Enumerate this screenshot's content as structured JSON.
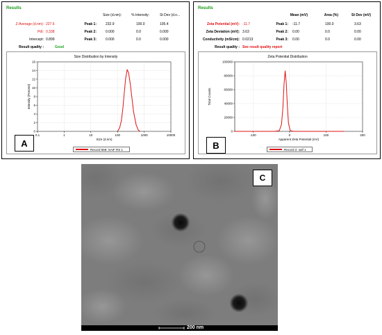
{
  "panel_a": {
    "results_title": "Results",
    "col_headers": [
      "Size (d.nm):",
      "% Intensity:",
      "St Dev (d.n..."
    ],
    "rows": [
      {
        "label": "Z-Average (d.nm):",
        "value": "227.6",
        "peak": "Peak 1:",
        "size": "232.9",
        "intensity": "100.0",
        "stdev": "105.4"
      },
      {
        "label": "PdI:",
        "value": "0.338",
        "peak": "Peak 2:",
        "size": "0.000",
        "intensity": "0.0",
        "stdev": "0.000"
      },
      {
        "label": "Intercept:",
        "value": "0.899",
        "peak": "Peak 3:",
        "size": "0.000",
        "intensity": "0.0",
        "stdev": "0.000"
      }
    ],
    "quality_label": "Result quality :",
    "quality_value": "Good",
    "letter": "A"
  },
  "panel_b": {
    "results_title": "Results",
    "col_headers": [
      "Mean (mV)",
      "Area (%)",
      "St Dev (mV)"
    ],
    "rows": [
      {
        "label": "Zeta Potential (mV):",
        "value": "-11.7",
        "peak": "Peak 1:",
        "mean": "-11.7",
        "area": "100.0",
        "stdev": "3.63"
      },
      {
        "label": "Zeta Deviation (mV):",
        "value": "3.63",
        "peak": "Peak 2:",
        "mean": "0.00",
        "area": "0.0",
        "stdev": "0.00"
      },
      {
        "label": "Conductivity (mS/cm):",
        "value": "0.0213",
        "peak": "Peak 3:",
        "mean": "0.00",
        "area": "0.0",
        "stdev": "0.00"
      }
    ],
    "quality_label": "Result quality :",
    "quality_value": "See result quality report",
    "letter": "B"
  },
  "panel_c": {
    "letter": "C",
    "scale_label": "200 nm"
  },
  "chart_data": [
    {
      "type": "line",
      "title": "Size Distribution by Intensity",
      "xlabel": "Size (d.nm)",
      "ylabel": "Intensity (Percent)",
      "x_scale": "log",
      "xlim": [
        0.1,
        10000
      ],
      "x_ticks": [
        "0.1",
        "1",
        "10",
        "100",
        "1000",
        "10000"
      ],
      "ylim": [
        0,
        16
      ],
      "y_ticks": [
        "0",
        "2",
        "4",
        "6",
        "8",
        "10",
        "12",
        "14",
        "16"
      ],
      "grid": true,
      "legend": "bottom",
      "series": [
        {
          "name": "Record 659: SAIF RS 1",
          "color": "#e01010",
          "x": [
            100,
            120,
            140,
            160,
            180,
            200,
            230,
            260,
            300,
            350,
            400,
            500,
            600,
            700
          ],
          "y": [
            0,
            0.8,
            2.5,
            5.5,
            9,
            12,
            14.2,
            13.5,
            11,
            7.5,
            4.5,
            1.5,
            0.3,
            0
          ]
        }
      ]
    },
    {
      "type": "line",
      "title": "Zeta Potential Distribution",
      "xlabel": "Apparent Zeta Potential (mV)",
      "ylabel": "Total Counts",
      "xlim": [
        -150,
        200
      ],
      "x_ticks": [
        "-100",
        "0",
        "100",
        "200"
      ],
      "ylim": [
        0,
        100000
      ],
      "y_ticks": [
        "0",
        "20000",
        "40000",
        "60000",
        "80000",
        "100000"
      ],
      "grid": true,
      "legend": "bottom",
      "series": [
        {
          "name": "Record 2: saif 1",
          "color": "#e01010",
          "x": [
            -150,
            -40,
            -28,
            -22,
            -18,
            -15,
            -12,
            -9,
            -6,
            -3,
            2,
            10,
            150
          ],
          "y": [
            0,
            0,
            1000,
            10000,
            35000,
            68000,
            87000,
            70000,
            38000,
            12000,
            1000,
            0,
            0
          ]
        }
      ]
    }
  ]
}
